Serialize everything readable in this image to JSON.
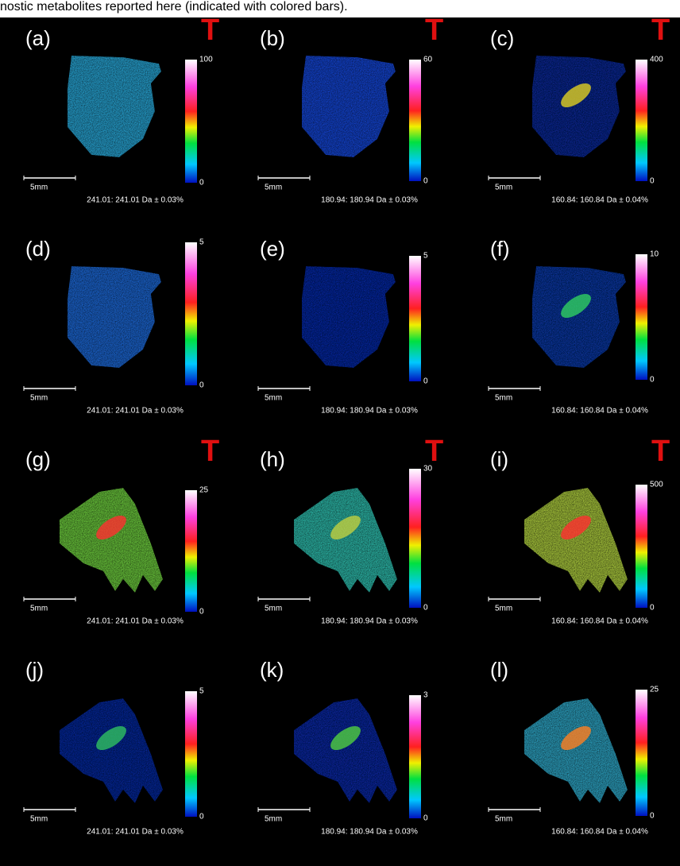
{
  "caption": "nostic metabolites reported here (indicated with colored bars).",
  "panels": [
    {
      "label": "(a)",
      "marker": "T",
      "max": "100",
      "min": "0",
      "scale": "5mm",
      "mz": "241.01: 241.01 Da ± 0.03%"
    },
    {
      "label": "(b)",
      "marker": "T",
      "max": "60",
      "min": "0",
      "scale": "5mm",
      "mz": "180.94: 180.94 Da ± 0.03%"
    },
    {
      "label": "(c)",
      "marker": "T",
      "max": "400",
      "min": "0",
      "scale": "5mm",
      "mz": "160.84: 160.84 Da ± 0.04%"
    },
    {
      "label": "(d)",
      "max": "5",
      "min": "0",
      "scale": "5mm",
      "mz": "241.01: 241.01 Da ± 0.03%"
    },
    {
      "label": "(e)",
      "max": "5",
      "min": "0",
      "scale": "5mm",
      "mz": "180.94: 180.94 Da ± 0.03%"
    },
    {
      "label": "(f)",
      "max": "10",
      "min": "0",
      "scale": "5mm",
      "mz": "160.84: 160.84 Da ± 0.04%"
    },
    {
      "label": "(g)",
      "marker": "T",
      "max": "25",
      "min": "0",
      "scale": "5mm",
      "mz": "241.01: 241.01 Da ± 0.03%"
    },
    {
      "label": "(h)",
      "marker": "T",
      "max": "30",
      "min": "0",
      "scale": "5mm",
      "mz": "180.94: 180.94 Da ± 0.03%"
    },
    {
      "label": "(i)",
      "marker": "T",
      "max": "500",
      "min": "0",
      "scale": "5mm",
      "mz": "160.84: 160.84 Da ± 0.04%"
    },
    {
      "label": "(j)",
      "max": "5",
      "min": "0",
      "scale": "5mm",
      "mz": "241.01: 241.01 Da ± 0.03%"
    },
    {
      "label": "(k)",
      "max": "3",
      "min": "0",
      "scale": "5mm",
      "mz": "180.94: 180.94 Da ± 0.03%"
    },
    {
      "label": "(l)",
      "max": "25",
      "min": "0",
      "scale": "5mm",
      "mz": "160.84: 160.84 Da ± 0.04%"
    }
  ]
}
